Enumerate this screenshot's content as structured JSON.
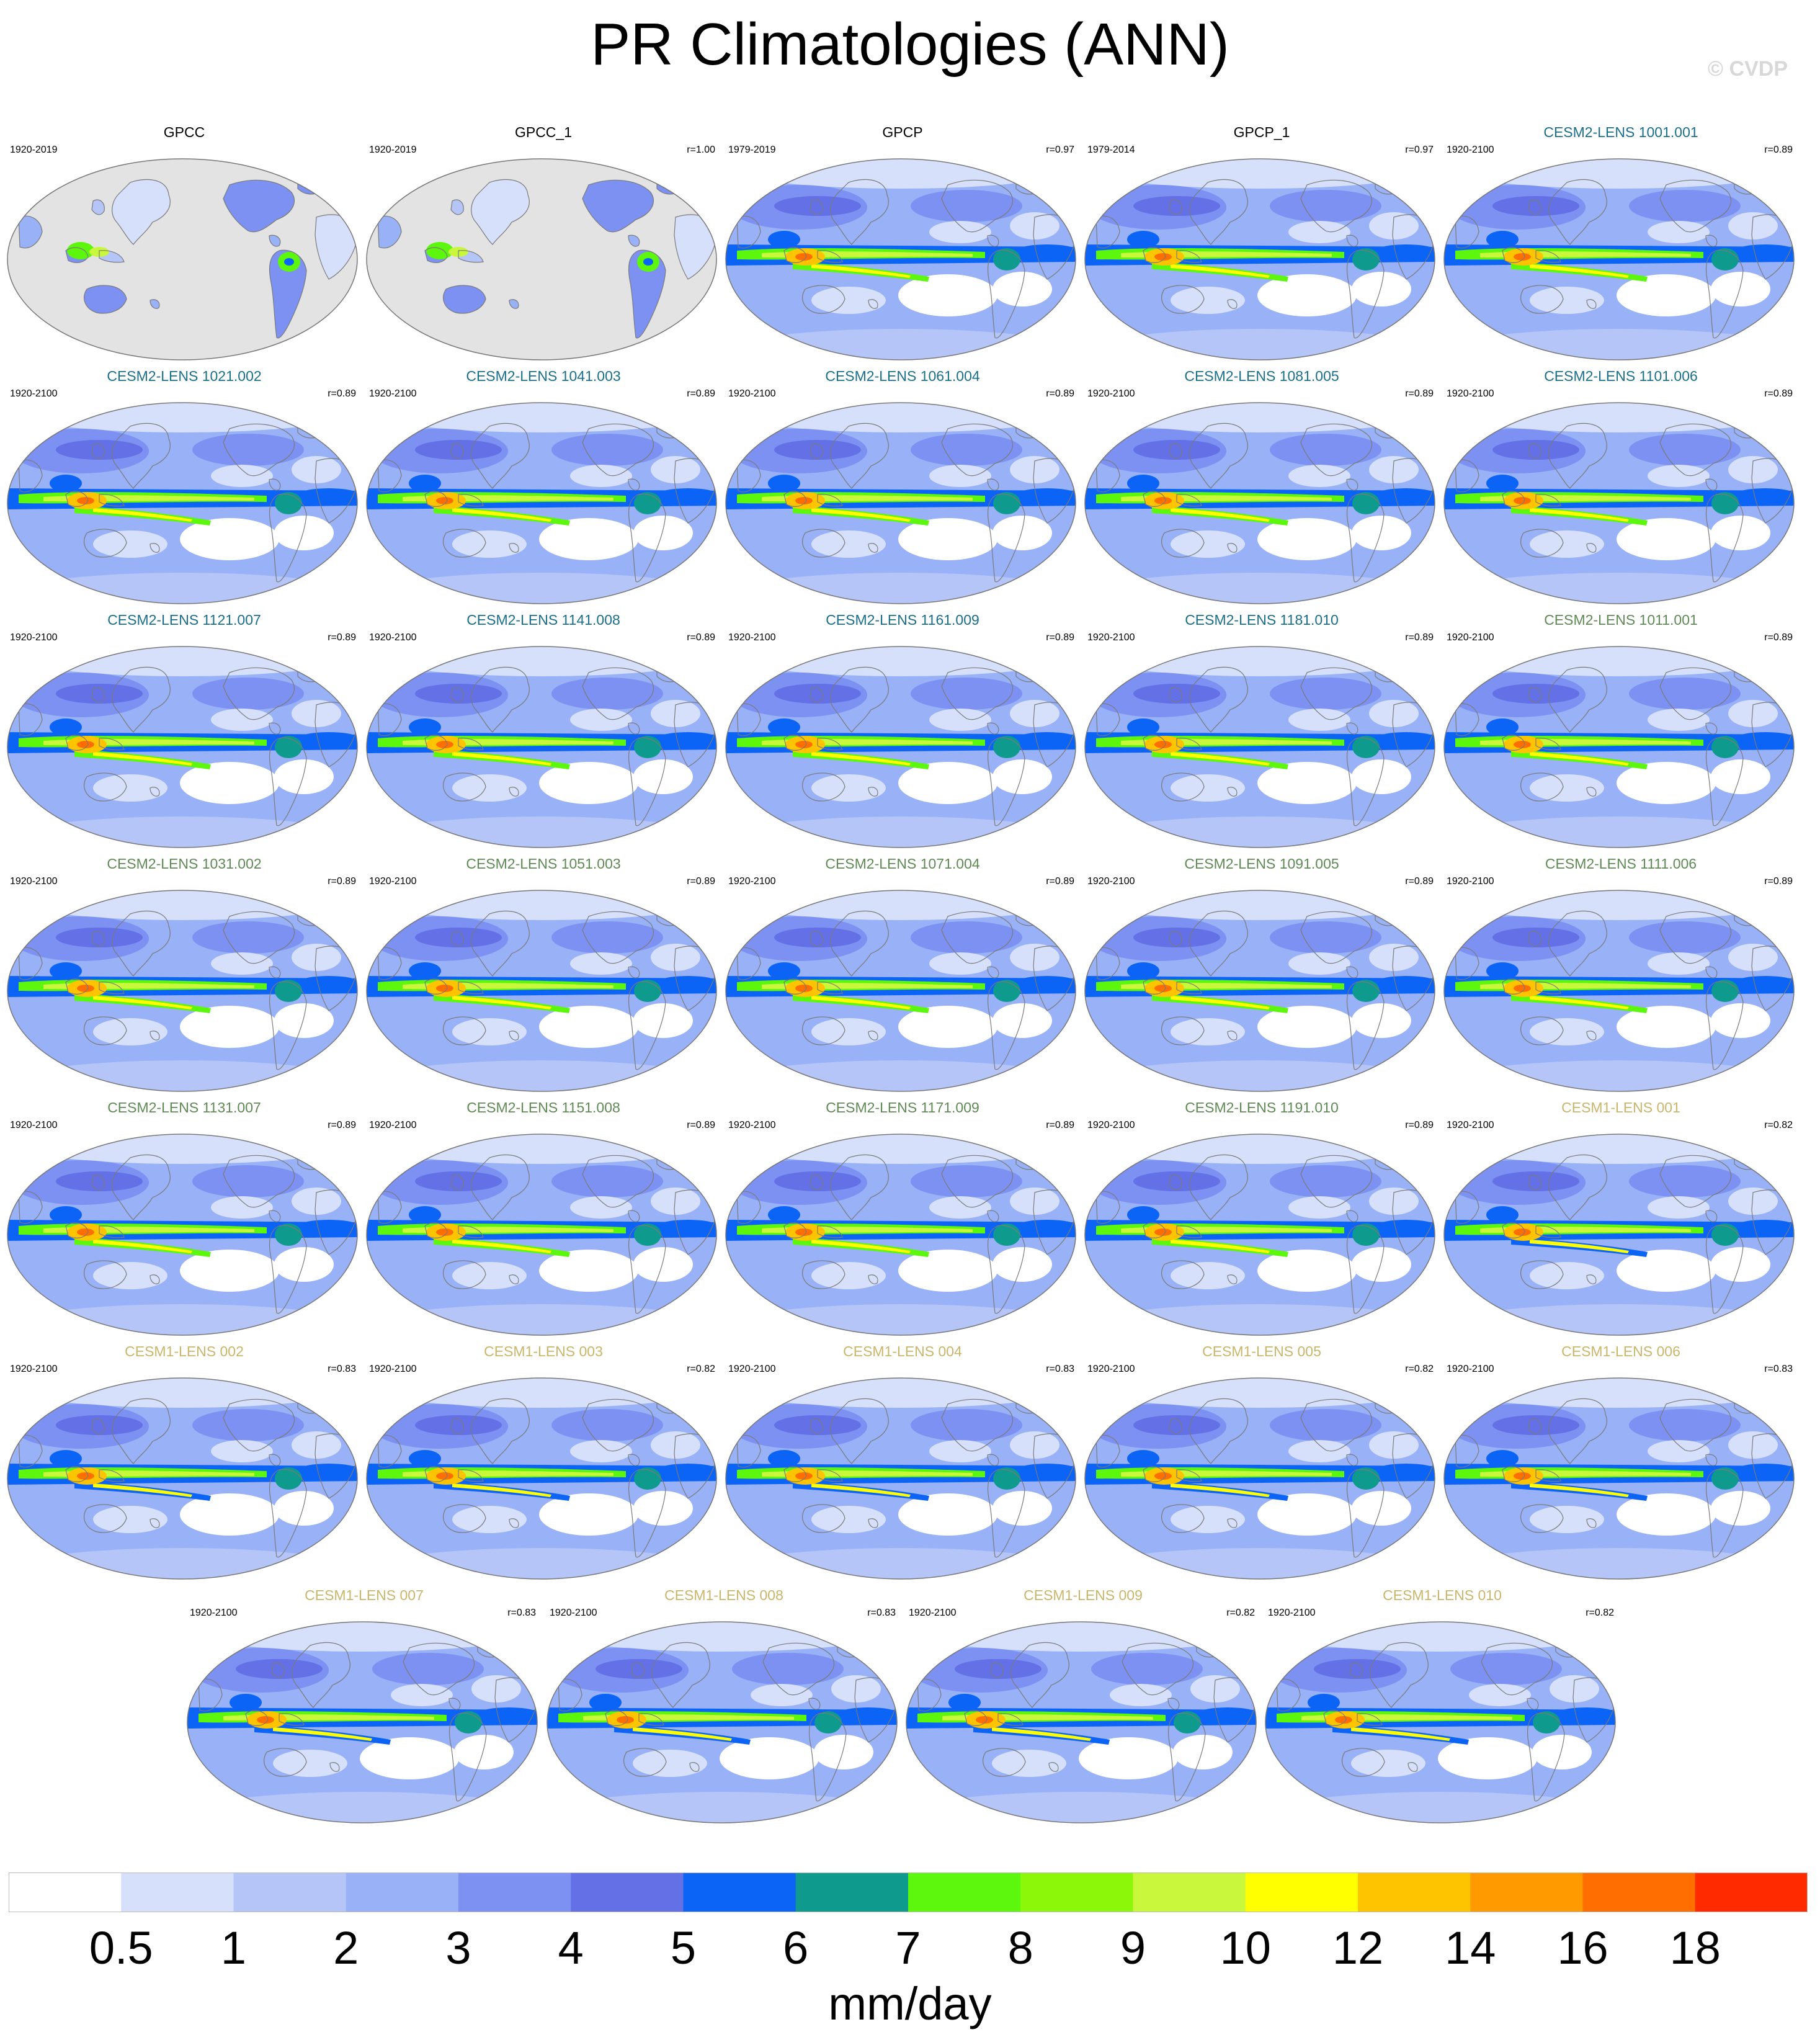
{
  "title": "PR Climatologies (ANN)",
  "watermark": "© CVDP",
  "colors": {
    "obs_title": "#000000",
    "cesm2_cmip6_title": "#1a6f8a",
    "cesm2_smbb_title": "#5f8a55",
    "cesm1_title": "#c9b66b",
    "land_no_data": "#e3e3e3"
  },
  "panels": [
    {
      "title": "GPCC",
      "years": "1920-2019",
      "r": "",
      "style": "obs",
      "land_only": true
    },
    {
      "title": "GPCC_1",
      "years": "1920-2019",
      "r": "r=1.00",
      "style": "obs",
      "land_only": true
    },
    {
      "title": "GPCP",
      "years": "1979-2019",
      "r": "r=0.97",
      "style": "obs",
      "land_only": false
    },
    {
      "title": "GPCP_1",
      "years": "1979-2014",
      "r": "r=0.97",
      "style": "obs",
      "land_only": false
    },
    {
      "title": "CESM2-LENS 1001.001",
      "years": "1920-2100",
      "r": "r=0.89",
      "style": "cesm2_cmip6",
      "land_only": false
    },
    {
      "title": "CESM2-LENS 1021.002",
      "years": "1920-2100",
      "r": "r=0.89",
      "style": "cesm2_cmip6",
      "land_only": false
    },
    {
      "title": "CESM2-LENS 1041.003",
      "years": "1920-2100",
      "r": "r=0.89",
      "style": "cesm2_cmip6",
      "land_only": false
    },
    {
      "title": "CESM2-LENS 1061.004",
      "years": "1920-2100",
      "r": "r=0.89",
      "style": "cesm2_cmip6",
      "land_only": false
    },
    {
      "title": "CESM2-LENS 1081.005",
      "years": "1920-2100",
      "r": "r=0.89",
      "style": "cesm2_cmip6",
      "land_only": false
    },
    {
      "title": "CESM2-LENS 1101.006",
      "years": "1920-2100",
      "r": "r=0.89",
      "style": "cesm2_cmip6",
      "land_only": false
    },
    {
      "title": "CESM2-LENS 1121.007",
      "years": "1920-2100",
      "r": "r=0.89",
      "style": "cesm2_cmip6",
      "land_only": false
    },
    {
      "title": "CESM2-LENS 1141.008",
      "years": "1920-2100",
      "r": "r=0.89",
      "style": "cesm2_cmip6",
      "land_only": false
    },
    {
      "title": "CESM2-LENS 1161.009",
      "years": "1920-2100",
      "r": "r=0.89",
      "style": "cesm2_cmip6",
      "land_only": false
    },
    {
      "title": "CESM2-LENS 1181.010",
      "years": "1920-2100",
      "r": "r=0.89",
      "style": "cesm2_cmip6",
      "land_only": false
    },
    {
      "title": "CESM2-LENS 1011.001",
      "years": "1920-2100",
      "r": "r=0.89",
      "style": "cesm2_smbb",
      "land_only": false
    },
    {
      "title": "CESM2-LENS 1031.002",
      "years": "1920-2100",
      "r": "r=0.89",
      "style": "cesm2_smbb",
      "land_only": false
    },
    {
      "title": "CESM2-LENS 1051.003",
      "years": "1920-2100",
      "r": "r=0.89",
      "style": "cesm2_smbb",
      "land_only": false
    },
    {
      "title": "CESM2-LENS 1071.004",
      "years": "1920-2100",
      "r": "r=0.89",
      "style": "cesm2_smbb",
      "land_only": false
    },
    {
      "title": "CESM2-LENS 1091.005",
      "years": "1920-2100",
      "r": "r=0.89",
      "style": "cesm2_smbb",
      "land_only": false
    },
    {
      "title": "CESM2-LENS 1111.006",
      "years": "1920-2100",
      "r": "r=0.89",
      "style": "cesm2_smbb",
      "land_only": false
    },
    {
      "title": "CESM2-LENS 1131.007",
      "years": "1920-2100",
      "r": "r=0.89",
      "style": "cesm2_smbb",
      "land_only": false
    },
    {
      "title": "CESM2-LENS 1151.008",
      "years": "1920-2100",
      "r": "r=0.89",
      "style": "cesm2_smbb",
      "land_only": false
    },
    {
      "title": "CESM2-LENS 1171.009",
      "years": "1920-2100",
      "r": "r=0.89",
      "style": "cesm2_smbb",
      "land_only": false
    },
    {
      "title": "CESM2-LENS 1191.010",
      "years": "1920-2100",
      "r": "r=0.89",
      "style": "cesm2_smbb",
      "land_only": false
    },
    {
      "title": "CESM1-LENS 001",
      "years": "1920-2100",
      "r": "r=0.82",
      "style": "cesm1",
      "land_only": false
    },
    {
      "title": "CESM1-LENS 002",
      "years": "1920-2100",
      "r": "r=0.83",
      "style": "cesm1",
      "land_only": false
    },
    {
      "title": "CESM1-LENS 003",
      "years": "1920-2100",
      "r": "r=0.82",
      "style": "cesm1",
      "land_only": false
    },
    {
      "title": "CESM1-LENS 004",
      "years": "1920-2100",
      "r": "r=0.83",
      "style": "cesm1",
      "land_only": false
    },
    {
      "title": "CESM1-LENS 005",
      "years": "1920-2100",
      "r": "r=0.82",
      "style": "cesm1",
      "land_only": false
    },
    {
      "title": "CESM1-LENS 006",
      "years": "1920-2100",
      "r": "r=0.83",
      "style": "cesm1",
      "land_only": false
    },
    {
      "title": "CESM1-LENS 007",
      "years": "1920-2100",
      "r": "r=0.83",
      "style": "cesm1",
      "land_only": false
    },
    {
      "title": "CESM1-LENS 008",
      "years": "1920-2100",
      "r": "r=0.83",
      "style": "cesm1",
      "land_only": false
    },
    {
      "title": "CESM1-LENS 009",
      "years": "1920-2100",
      "r": "r=0.82",
      "style": "cesm1",
      "land_only": false
    },
    {
      "title": "CESM1-LENS 010",
      "years": "1920-2100",
      "r": "r=0.82",
      "style": "cesm1",
      "land_only": false
    }
  ],
  "colorbar": {
    "units": "mm/day",
    "levels": [
      "0.5",
      "1",
      "2",
      "3",
      "4",
      "5",
      "6",
      "7",
      "8",
      "9",
      "10",
      "12",
      "14",
      "16",
      "18"
    ],
    "colors": [
      "#ffffff",
      "#d6e0fb",
      "#b5c5f8",
      "#98b1f7",
      "#7c91f2",
      "#6370e6",
      "#0b64f5",
      "#0e9a8c",
      "#5cf70c",
      "#8df70a",
      "#c8f73b",
      "#ffff00",
      "#ffc400",
      "#ff9a00",
      "#ff6e00",
      "#ff2a00"
    ]
  }
}
